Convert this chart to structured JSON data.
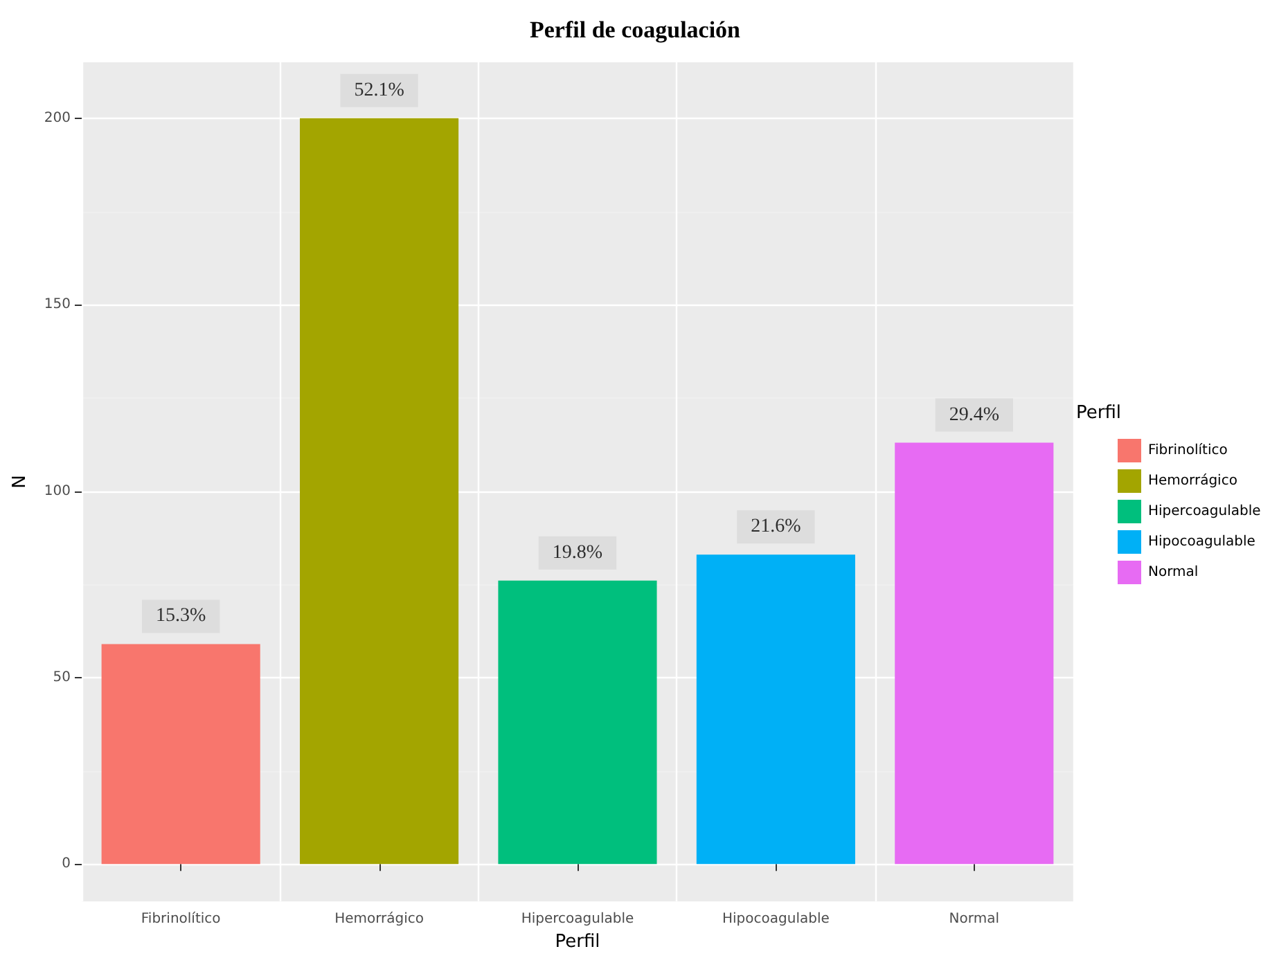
{
  "chart_data": {
    "type": "bar",
    "title": "Perfil de coagulación",
    "xlabel": "Perfil",
    "ylabel": "N",
    "legend_title": "Perfil",
    "categories": [
      "Fibrinolítico",
      "Hemorrágico",
      "Hipercoagulable",
      "Hipocoagulable",
      "Normal"
    ],
    "series": [
      {
        "name": "Fibrinolítico",
        "color": "#f8766d",
        "values": [
          59,
          null,
          null,
          null,
          null
        ]
      },
      {
        "name": "Hemorrágico",
        "color": "#a3a500",
        "values": [
          null,
          200,
          null,
          null,
          null
        ]
      },
      {
        "name": "Hipercoagulable",
        "color": "#00bf7d",
        "values": [
          null,
          null,
          76,
          null,
          null
        ]
      },
      {
        "name": "Hipocoagulable",
        "color": "#00b0f6",
        "values": [
          null,
          null,
          null,
          83,
          null
        ]
      },
      {
        "name": "Normal",
        "color": "#e76bf3",
        "values": [
          null,
          null,
          null,
          null,
          113
        ]
      }
    ],
    "annotations": [
      {
        "text": "15.3%",
        "x": "Fibrinolítico",
        "y": 59
      },
      {
        "text": "52.1%",
        "x": "Hemorrágico",
        "y": 200
      },
      {
        "text": "19.8%",
        "x": "Hipercoagulable",
        "y": 76
      },
      {
        "text": "21.6%",
        "x": "Hipocoagulable",
        "y": 83
      },
      {
        "text": "29.4%",
        "x": "Normal",
        "y": 113
      }
    ],
    "ylim": [
      -10,
      215
    ],
    "yticks": [
      0,
      50,
      100,
      150,
      200
    ],
    "grid": true,
    "legend": "right"
  }
}
